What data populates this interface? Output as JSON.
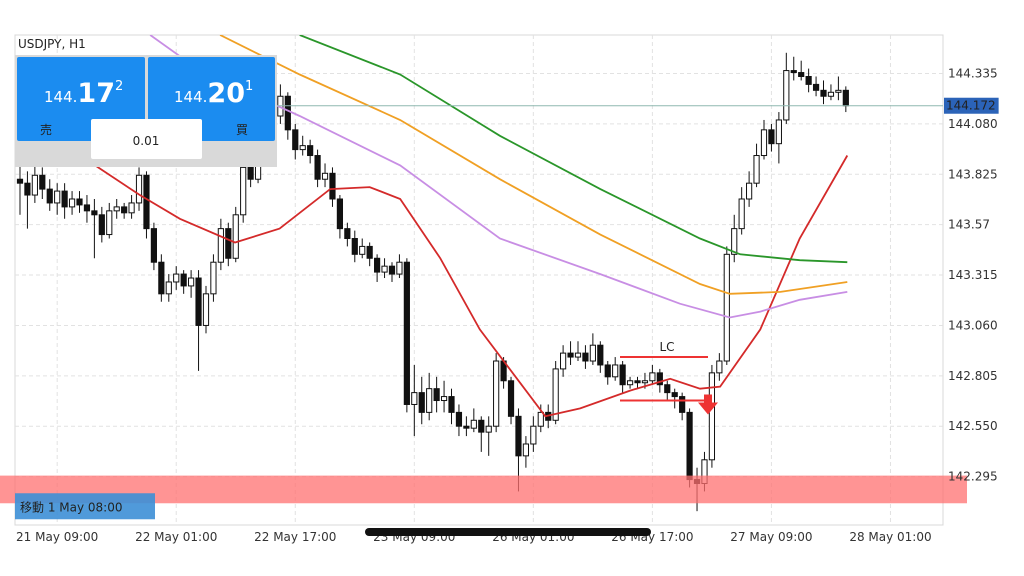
{
  "chart_data": {
    "type": "candlestick",
    "title": "USDJPY, H1",
    "xlim": [
      -0.67,
      124.06
    ],
    "ylim": [
      142.05,
      144.53
    ],
    "grid": true,
    "xticks": [
      {
        "value": 5,
        "label": "21 May 09:00"
      },
      {
        "value": 21,
        "label": "22 May 01:00"
      },
      {
        "value": 37,
        "label": "22 May 17:00"
      },
      {
        "value": 53,
        "label": "23 May 09:00"
      },
      {
        "value": 69,
        "label": "26 May 01:00"
      },
      {
        "value": 85,
        "label": "26 May 17:00"
      },
      {
        "value": 101,
        "label": "27 May 09:00"
      },
      {
        "value": 117,
        "label": "28 May 01:00"
      }
    ],
    "yticks": [
      142.295,
      {
        "value": 142.55,
        "label": "142.550"
      },
      142.805,
      {
        "value": 143.06,
        "label": "143.060"
      },
      143.315,
      143.57,
      143.825,
      {
        "value": 144.08,
        "label": "144.080"
      },
      144.335
    ],
    "current_price": 144.172,
    "candles": [
      [
        143.8,
        143.92,
        143.62,
        143.78
      ],
      [
        143.78,
        143.84,
        143.55,
        143.72
      ],
      [
        143.72,
        143.9,
        143.68,
        143.82
      ],
      [
        143.82,
        143.86,
        143.7,
        143.75
      ],
      [
        143.75,
        143.8,
        143.64,
        143.68
      ],
      [
        143.68,
        143.78,
        143.62,
        143.74
      ],
      [
        143.74,
        143.78,
        143.6,
        143.66
      ],
      [
        143.66,
        143.74,
        143.62,
        143.7
      ],
      [
        143.7,
        143.74,
        143.63,
        143.67
      ],
      [
        143.67,
        143.72,
        143.58,
        143.64
      ],
      [
        143.64,
        143.7,
        143.4,
        143.62
      ],
      [
        143.62,
        143.66,
        143.48,
        143.52
      ],
      [
        143.52,
        143.68,
        143.5,
        143.64
      ],
      [
        143.64,
        143.7,
        143.6,
        143.66
      ],
      [
        143.66,
        143.68,
        143.6,
        143.63
      ],
      [
        143.63,
        143.72,
        143.6,
        143.68
      ],
      [
        143.68,
        143.86,
        143.64,
        143.82
      ],
      [
        143.82,
        143.84,
        143.5,
        143.55
      ],
      [
        143.55,
        143.58,
        143.34,
        143.38
      ],
      [
        143.38,
        143.42,
        143.18,
        143.22
      ],
      [
        143.22,
        143.32,
        143.18,
        143.28
      ],
      [
        143.28,
        143.36,
        143.24,
        143.32
      ],
      [
        143.32,
        143.34,
        143.22,
        143.26
      ],
      [
        143.26,
        143.34,
        143.2,
        143.3
      ],
      [
        143.3,
        143.34,
        142.83,
        143.06
      ],
      [
        143.06,
        143.26,
        143.02,
        143.22
      ],
      [
        143.22,
        143.42,
        143.18,
        143.38
      ],
      [
        143.38,
        143.6,
        143.34,
        143.55
      ],
      [
        143.55,
        143.58,
        143.36,
        143.4
      ],
      [
        143.4,
        143.66,
        143.38,
        143.62
      ],
      [
        143.62,
        143.9,
        143.58,
        143.86
      ],
      [
        143.86,
        143.9,
        143.76,
        143.8
      ],
      [
        143.8,
        144.06,
        143.78,
        144.02
      ],
      [
        144.02,
        144.14,
        143.98,
        144.1
      ],
      [
        144.1,
        144.18,
        144.06,
        144.12
      ],
      [
        144.12,
        144.28,
        144.08,
        144.22
      ],
      [
        144.22,
        144.24,
        144.0,
        144.05
      ],
      [
        144.05,
        144.08,
        143.9,
        143.95
      ],
      [
        143.95,
        144.02,
        143.92,
        143.97
      ],
      [
        143.97,
        144.0,
        143.88,
        143.92
      ],
      [
        143.92,
        143.95,
        143.76,
        143.8
      ],
      [
        143.8,
        143.88,
        143.76,
        143.83
      ],
      [
        143.83,
        143.86,
        143.66,
        143.7
      ],
      [
        143.7,
        143.72,
        143.5,
        143.55
      ],
      [
        143.55,
        143.58,
        143.46,
        143.5
      ],
      [
        143.5,
        143.54,
        143.38,
        143.42
      ],
      [
        143.42,
        143.5,
        143.4,
        143.46
      ],
      [
        143.46,
        143.48,
        143.36,
        143.4
      ],
      [
        143.4,
        143.42,
        143.28,
        143.33
      ],
      [
        143.33,
        143.4,
        143.3,
        143.36
      ],
      [
        143.36,
        143.38,
        143.28,
        143.32
      ],
      [
        143.32,
        143.42,
        143.3,
        143.38
      ],
      [
        143.38,
        143.4,
        142.62,
        142.66
      ],
      [
        142.66,
        142.86,
        142.5,
        142.72
      ],
      [
        142.72,
        142.8,
        142.56,
        142.62
      ],
      [
        142.62,
        142.82,
        142.58,
        142.74
      ],
      [
        142.74,
        142.8,
        142.62,
        142.68
      ],
      [
        142.68,
        142.78,
        142.62,
        142.7
      ],
      [
        142.7,
        142.74,
        142.56,
        142.62
      ],
      [
        142.62,
        142.66,
        142.5,
        142.55
      ],
      [
        142.55,
        142.6,
        142.5,
        142.54
      ],
      [
        142.54,
        142.64,
        142.52,
        142.58
      ],
      [
        142.58,
        142.6,
        142.42,
        142.52
      ],
      [
        142.52,
        142.6,
        142.4,
        142.55
      ],
      [
        142.55,
        142.92,
        142.52,
        142.88
      ],
      [
        142.88,
        142.9,
        142.74,
        142.78
      ],
      [
        142.78,
        142.8,
        142.56,
        142.6
      ],
      [
        142.6,
        142.64,
        142.22,
        142.4
      ],
      [
        142.4,
        142.5,
        142.34,
        142.46
      ],
      [
        142.46,
        142.6,
        142.42,
        142.55
      ],
      [
        142.55,
        142.66,
        142.52,
        142.62
      ],
      [
        142.62,
        142.66,
        142.54,
        142.58
      ],
      [
        142.58,
        142.88,
        142.56,
        142.84
      ],
      [
        142.84,
        142.96,
        142.8,
        142.92
      ],
      [
        142.92,
        142.98,
        142.86,
        142.9
      ],
      [
        142.9,
        142.98,
        142.88,
        142.92
      ],
      [
        142.92,
        142.96,
        142.84,
        142.88
      ],
      [
        142.88,
        143.02,
        142.86,
        142.96
      ],
      [
        142.96,
        142.98,
        142.82,
        142.86
      ],
      [
        142.86,
        142.88,
        142.76,
        142.8
      ],
      [
        142.8,
        142.9,
        142.78,
        142.86
      ],
      [
        142.86,
        142.88,
        142.72,
        142.76
      ],
      [
        142.76,
        142.8,
        142.74,
        142.78
      ],
      [
        142.78,
        142.8,
        142.74,
        142.77
      ],
      [
        142.77,
        142.82,
        142.74,
        142.78
      ],
      [
        142.78,
        142.86,
        142.76,
        142.82
      ],
      [
        142.82,
        142.84,
        142.72,
        142.76
      ],
      [
        142.76,
        142.78,
        142.68,
        142.72
      ],
      [
        142.72,
        142.74,
        142.64,
        142.7
      ],
      [
        142.7,
        142.72,
        142.58,
        142.62
      ],
      [
        142.62,
        142.64,
        142.24,
        142.28
      ],
      [
        142.28,
        142.34,
        142.12,
        142.26
      ],
      [
        142.26,
        142.42,
        142.22,
        142.38
      ],
      [
        142.38,
        142.86,
        142.34,
        142.82
      ],
      [
        142.82,
        142.92,
        142.78,
        142.88
      ],
      [
        142.88,
        143.46,
        142.86,
        143.42
      ],
      [
        143.42,
        143.62,
        143.38,
        143.55
      ],
      [
        143.55,
        143.76,
        143.52,
        143.7
      ],
      [
        143.7,
        143.84,
        143.66,
        143.78
      ],
      [
        143.78,
        143.98,
        143.76,
        143.92
      ],
      [
        143.92,
        144.1,
        143.9,
        144.05
      ],
      [
        144.05,
        144.08,
        143.94,
        143.98
      ],
      [
        143.98,
        144.14,
        143.88,
        144.1
      ],
      [
        144.1,
        144.44,
        144.08,
        144.35
      ],
      [
        144.35,
        144.42,
        144.3,
        144.34
      ],
      [
        144.34,
        144.4,
        144.3,
        144.32
      ],
      [
        144.32,
        144.36,
        144.24,
        144.28
      ],
      [
        144.28,
        144.32,
        144.22,
        144.25
      ],
      [
        144.25,
        144.3,
        144.18,
        144.22
      ],
      [
        144.22,
        144.28,
        144.2,
        144.24
      ],
      [
        144.24,
        144.32,
        144.2,
        144.25
      ],
      [
        144.25,
        144.27,
        144.14,
        144.172
      ]
    ],
    "series": [
      {
        "color": "#d42a2a",
        "x": [
          10.1,
          16.1,
          21.5,
          28.9,
          34.9,
          41.7,
          47.0,
          51.1,
          56.5,
          61.8,
          67.2,
          70.6,
          75.3,
          82.0,
          87.4,
          91.4,
          94.1,
          99.5,
          104.8,
          111.2
        ],
        "values": [
          143.87,
          143.72,
          143.6,
          143.48,
          143.55,
          143.75,
          143.76,
          143.7,
          143.4,
          143.04,
          142.77,
          142.6,
          142.64,
          142.73,
          142.79,
          142.74,
          142.75,
          143.04,
          143.5,
          143.92
        ]
      },
      {
        "color": "#c88ee4",
        "x": [
          17.5,
          24.2,
          37.6,
          51.1,
          64.5,
          78.0,
          88.7,
          95.4,
          99.5,
          104.8,
          111.2
        ],
        "values": [
          144.53,
          144.35,
          144.12,
          143.87,
          143.5,
          143.32,
          143.17,
          143.1,
          143.13,
          143.19,
          143.23
        ]
      },
      {
        "color": "#f0a024",
        "x": [
          26.9,
          37.6,
          51.1,
          64.5,
          78.0,
          91.4,
          95.4,
          102.2,
          111.2
        ],
        "values": [
          144.53,
          144.33,
          144.1,
          143.8,
          143.52,
          143.27,
          143.22,
          143.23,
          143.28
        ]
      },
      {
        "color": "#2a962a",
        "x": [
          37.6,
          51.1,
          64.5,
          78.0,
          91.4,
          96.8,
          104.8,
          111.2
        ],
        "values": [
          144.53,
          144.33,
          144.02,
          143.75,
          143.5,
          143.42,
          143.39,
          143.38
        ]
      }
    ],
    "lc": {
      "label": "LC",
      "levels": [
        142.9,
        142.68
      ]
    },
    "band": {
      "from": 142.16,
      "to": 142.3,
      "label": "移動 1 May 08:00"
    }
  },
  "trade_panel": {
    "sell": {
      "label": "売",
      "price_head": "144.",
      "price_big": "17",
      "price_pip": "2"
    },
    "buy": {
      "label": "買",
      "price_head": "144.",
      "price_big": "20",
      "price_pip": "1"
    },
    "lot": "0.01"
  }
}
